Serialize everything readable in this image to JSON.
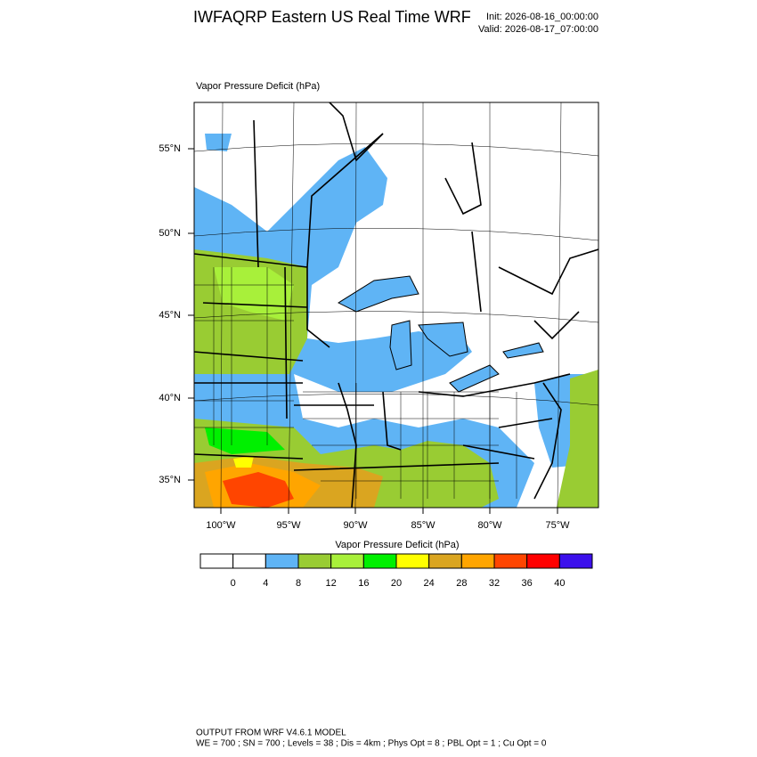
{
  "header": {
    "title": "IWFAQRP Eastern US Real Time WRF",
    "init": "Init: 2026-08-16_00:00:00",
    "valid": "Valid: 2026-08-17_07:00:00"
  },
  "map": {
    "title": "Vapor Pressure Deficit   (hPa)",
    "lat_labels": [
      "55°N",
      "50°N",
      "45°N",
      "40°N",
      "35°N"
    ],
    "lon_labels": [
      "100°W",
      "95°W",
      "90°W",
      "85°W",
      "80°W",
      "75°W"
    ]
  },
  "colorbar": {
    "title": "Vapor Pressure Deficit  (hPa)",
    "labels": [
      0,
      4,
      8,
      12,
      16,
      20,
      24,
      28,
      32,
      36,
      40
    ],
    "colors": [
      "#ffffff",
      "#ffffff",
      "#5fb4f5",
      "#99cc33",
      "#a8f03a",
      "#00f000",
      "#ffff00",
      "#daa520",
      "#ffa500",
      "#ff4500",
      "#ff0000",
      "#3c10ec"
    ]
  },
  "footer": {
    "line1": "OUTPUT FROM WRF V4.6.1 MODEL",
    "line2": "WE = 700 ; SN = 700 ; Levels = 38 ; Dis = 4km ; Phys Opt = 8 ; PBL Opt = 1 ; Cu Opt = 0"
  }
}
